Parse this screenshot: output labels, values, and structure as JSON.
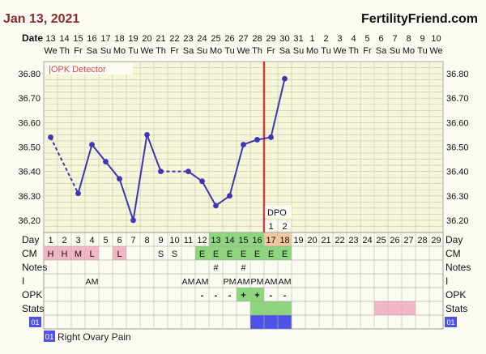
{
  "header": {
    "date": "Jan 13, 2021",
    "brand": "FertilityFriend.com",
    "date_row_label": "Date"
  },
  "chart_data": {
    "type": "line",
    "dates": [
      "13",
      "14",
      "15",
      "16",
      "17",
      "18",
      "19",
      "20",
      "21",
      "22",
      "23",
      "24",
      "25",
      "26",
      "27",
      "28",
      "29",
      "30",
      "31",
      "1",
      "2",
      "3",
      "4",
      "5",
      "6",
      "7",
      "8",
      "9",
      "10"
    ],
    "weekdays": [
      "We",
      "Th",
      "Fr",
      "Sa",
      "Su",
      "Mo",
      "Tu",
      "We",
      "Th",
      "Fr",
      "Sa",
      "Su",
      "Mo",
      "Tu",
      "We",
      "Th",
      "Fr",
      "Sa",
      "Su",
      "Mo",
      "Tu",
      "We",
      "Th",
      "Fr",
      "Sa",
      "Su",
      "Mo",
      "Tu",
      "We"
    ],
    "cycle_days": [
      "1",
      "2",
      "3",
      "4",
      "5",
      "6",
      "7",
      "8",
      "9",
      "10",
      "11",
      "12",
      "13",
      "14",
      "15",
      "16",
      "17",
      "18",
      "19",
      "20",
      "21",
      "22",
      "23",
      "24",
      "25",
      "26",
      "27",
      "28",
      "29"
    ],
    "temperatures": [
      36.54,
      null,
      36.31,
      36.51,
      36.44,
      36.37,
      36.2,
      36.55,
      36.4,
      null,
      36.4,
      36.36,
      36.26,
      36.3,
      36.51,
      36.53,
      36.54,
      36.78
    ],
    "dashed_segments": [
      [
        0,
        2
      ],
      [
        8,
        10
      ]
    ],
    "y_ticks": [
      "36.20",
      "36.30",
      "36.40",
      "36.50",
      "36.60",
      "36.70",
      "36.80"
    ],
    "ylim": [
      36.15,
      36.85
    ],
    "coverline": null,
    "ovulation_day_index": 15,
    "opk_label": "OPK Detector",
    "dpo_label": "DPO",
    "dpo": [
      {
        "day_index": 16,
        "value": "1"
      },
      {
        "day_index": 17,
        "value": "2"
      }
    ],
    "rows": {
      "day_label": "Day",
      "cm_label": "CM",
      "notes_label": "Notes",
      "i_label": "I",
      "opk_label": "OPK",
      "stats_label": "Stats",
      "code_label": "01",
      "cm": [
        {
          "i": 0,
          "v": "H",
          "c": "pink"
        },
        {
          "i": 1,
          "v": "H",
          "c": "pink"
        },
        {
          "i": 2,
          "v": "M",
          "c": "pink"
        },
        {
          "i": 3,
          "v": "L",
          "c": "pink"
        },
        {
          "i": 5,
          "v": "L",
          "c": "pink"
        },
        {
          "i": 8,
          "v": "S",
          "c": ""
        },
        {
          "i": 9,
          "v": "S",
          "c": ""
        },
        {
          "i": 11,
          "v": "E",
          "c": "green"
        },
        {
          "i": 12,
          "v": "E",
          "c": "green"
        },
        {
          "i": 13,
          "v": "E",
          "c": "green"
        },
        {
          "i": 14,
          "v": "E",
          "c": "green"
        },
        {
          "i": 15,
          "v": "E",
          "c": "green"
        },
        {
          "i": 16,
          "v": "E",
          "c": "green"
        },
        {
          "i": 17,
          "v": "E",
          "c": "green"
        }
      ],
      "notes": [
        {
          "i": 12,
          "v": "#"
        },
        {
          "i": 14,
          "v": "#"
        }
      ],
      "intercourse": [
        {
          "i": 3,
          "v": "AM"
        },
        {
          "i": 10,
          "v": "AM"
        },
        {
          "i": 11,
          "v": "AM"
        },
        {
          "i": 13,
          "v": "PM"
        },
        {
          "i": 14,
          "v": "AM"
        },
        {
          "i": 15,
          "v": "PM"
        },
        {
          "i": 16,
          "v": "AM"
        },
        {
          "i": 17,
          "v": "AM"
        }
      ],
      "opk": [
        {
          "i": 11,
          "v": "-",
          "c": ""
        },
        {
          "i": 12,
          "v": "-",
          "c": ""
        },
        {
          "i": 13,
          "v": "-",
          "c": ""
        },
        {
          "i": 14,
          "v": "+",
          "c": "green"
        },
        {
          "i": 15,
          "v": "+",
          "c": "green"
        },
        {
          "i": 16,
          "v": "-",
          "c": ""
        },
        {
          "i": 17,
          "v": "-",
          "c": ""
        }
      ],
      "stats_green": [
        15,
        16,
        17
      ],
      "stats_pink": [
        24,
        25,
        26
      ],
      "code_blue": [
        15,
        16,
        17
      ],
      "green_day_cells": [
        12,
        13,
        14,
        15
      ],
      "orange_day_cells": [
        16,
        17
      ]
    }
  },
  "legend": {
    "code": "01",
    "text": "Right Ovary Pain"
  },
  "colors": {
    "line": "#3f35b5",
    "grid": "#c5c5b0",
    "chart_bg": "#f6f6d9",
    "ovulation": "#d63a3a",
    "green": "#8ed67e",
    "pink": "#f3b6c6",
    "orange": "#f2c8a0",
    "blue": "#4f52e6",
    "opk_text": "#d64a4a"
  }
}
